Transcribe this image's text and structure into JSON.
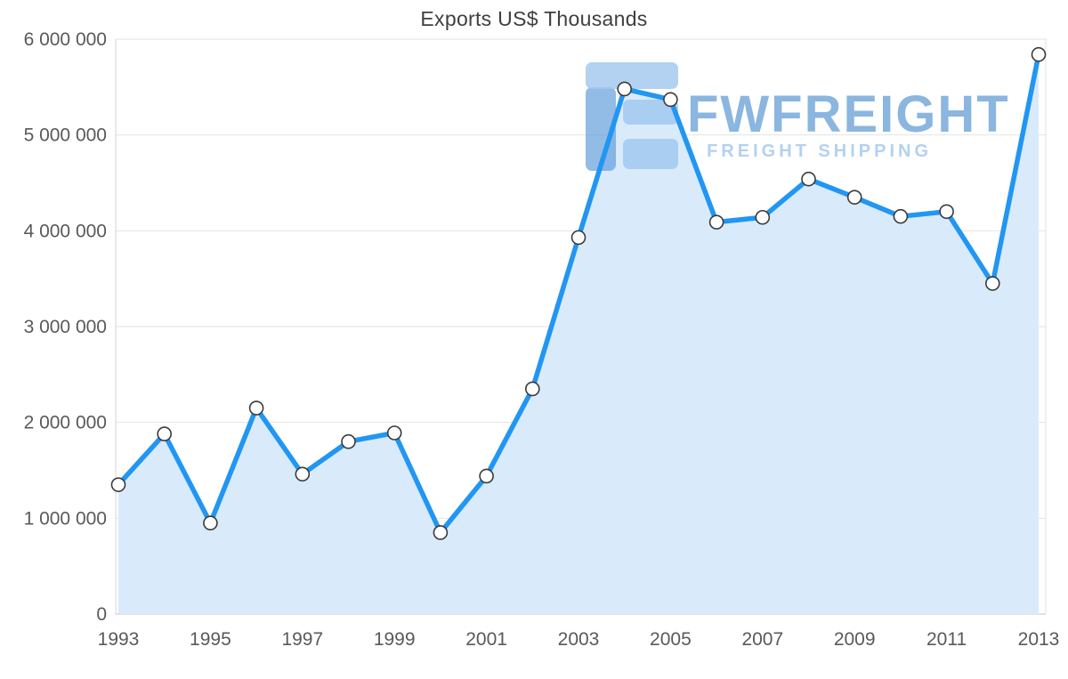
{
  "chart_data": {
    "type": "area",
    "title": "Exports US$ Thousands",
    "x": [
      1993,
      1994,
      1995,
      1996,
      1997,
      1998,
      1999,
      2000,
      2001,
      2002,
      2003,
      2004,
      2005,
      2006,
      2007,
      2008,
      2009,
      2010,
      2011,
      2012,
      2013
    ],
    "values": [
      1350000,
      1880000,
      950000,
      2150000,
      1460000,
      1800000,
      1890000,
      850000,
      1440000,
      2350000,
      3930000,
      5480000,
      5370000,
      4090000,
      4140000,
      4540000,
      4350000,
      4150000,
      4200000,
      3450000,
      5840000
    ],
    "xlabel": "",
    "ylabel": "",
    "ylim": [
      0,
      6000000
    ],
    "y_tick_step": 1000000,
    "x_tick_step": 2,
    "grid": true,
    "legend": "none",
    "line_color": "#2196f3",
    "area_color": "#d9eafb",
    "marker_fill": "#ffffff",
    "marker_stroke": "#3a3a3a",
    "grid_color": "#e2e2e2",
    "axis_color": "#c6c6c6",
    "label_color": "#595959"
  },
  "watermark": {
    "brand": "FWFREIGHT",
    "tagline": "FREIGHT SHIPPING",
    "brand_color": "#5d9ad2",
    "tagline_color": "#abcdf0",
    "logo_dark": "#5f9bda",
    "logo_light": "#9cc4ee"
  }
}
